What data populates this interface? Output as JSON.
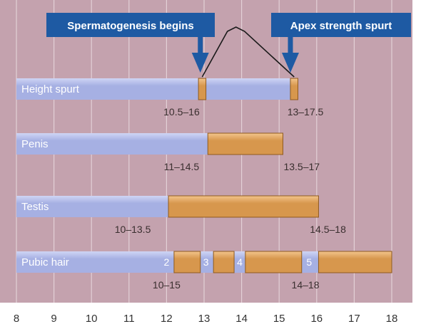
{
  "colors": {
    "background": "#c4a2ae",
    "gridline": "#e3d0d6",
    "bar_fill": "#a6b0e3",
    "bar_highlight": "#cfd5f5",
    "segment_fill": "#d7974d",
    "segment_highlight": "#f3c58c",
    "callout": "#1e5aa3"
  },
  "callouts": [
    {
      "label": "Spermatogenesis begins",
      "age": 12.9
    },
    {
      "label": "Apex strength spurt",
      "age": 15.3
    }
  ],
  "chart_data": {
    "type": "timeline",
    "x_ticks": [
      "8",
      "9",
      "10",
      "11",
      "12",
      "13",
      "14",
      "15",
      "16",
      "17",
      "18"
    ],
    "xlim": [
      8,
      18
    ],
    "rows": [
      {
        "label": "Height spurt",
        "bar": [
          8,
          15.5
        ],
        "segments": [
          [
            12.85,
            13.05
          ],
          [
            15.3,
            15.5
          ]
        ],
        "stage_labels": [],
        "range_labels": [
          "10.5–16",
          "13–17.5"
        ],
        "range_label_positions": [
          12.4,
          15.7
        ]
      },
      {
        "label": "Penis",
        "bar": [
          8,
          13.1
        ],
        "segments": [
          [
            13.1,
            15.1
          ]
        ],
        "stage_labels": [],
        "range_labels": [
          "11–14.5",
          "13.5–17"
        ],
        "range_label_positions": [
          12.4,
          15.6
        ]
      },
      {
        "label": "Testis",
        "bar": [
          8,
          12.05
        ],
        "segments": [
          [
            12.05,
            16.05
          ]
        ],
        "stage_labels": [],
        "range_labels": [
          "10–13.5",
          "14.5–18"
        ],
        "range_label_positions": [
          11.1,
          16.3
        ]
      },
      {
        "label": "Pubic hair",
        "bar": [
          8,
          18
        ],
        "segments": [
          [
            12.2,
            12.9
          ],
          [
            13.25,
            13.8
          ],
          [
            14.1,
            15.6
          ],
          [
            16.05,
            18
          ]
        ],
        "stage_labels": [
          {
            "text": "2",
            "age": 12.0
          },
          {
            "text": "3",
            "age": 13.05
          },
          {
            "text": "4",
            "age": 13.95
          },
          {
            "text": "5",
            "age": 15.8
          }
        ],
        "range_labels": [
          "10–15",
          "14–18"
        ],
        "range_label_positions": [
          12.0,
          15.7
        ]
      }
    ]
  }
}
